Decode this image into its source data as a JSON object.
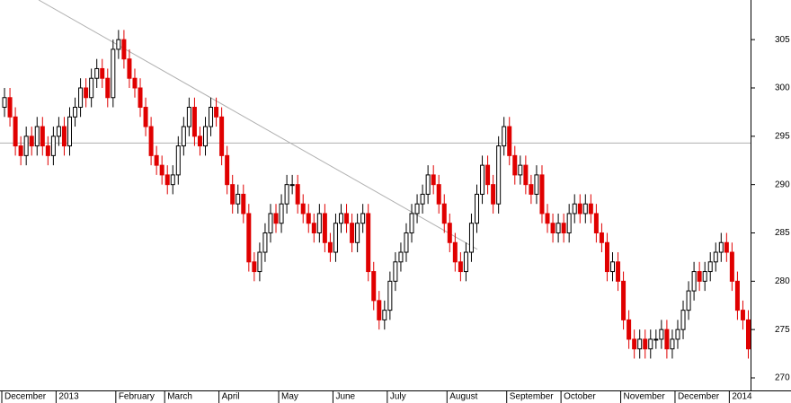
{
  "chart_data": {
    "type": "candlestick",
    "categories": [
      "December",
      null,
      null,
      null,
      null,
      null,
      null,
      null,
      null,
      null,
      "2013",
      null,
      null,
      null,
      null,
      null,
      null,
      null,
      null,
      null,
      null,
      "February",
      null,
      null,
      null,
      null,
      null,
      null,
      null,
      null,
      "March",
      null,
      null,
      null,
      null,
      null,
      null,
      null,
      null,
      null,
      "April",
      null,
      null,
      null,
      null,
      null,
      null,
      null,
      null,
      null,
      null,
      "May",
      null,
      null,
      null,
      null,
      null,
      null,
      null,
      null,
      null,
      "June",
      null,
      null,
      null,
      null,
      null,
      null,
      null,
      null,
      null,
      "July",
      null,
      null,
      null,
      null,
      null,
      null,
      null,
      null,
      null,
      null,
      "August",
      null,
      null,
      null,
      null,
      null,
      null,
      null,
      null,
      null,
      null,
      "September",
      null,
      null,
      null,
      null,
      null,
      null,
      null,
      null,
      null,
      "October",
      null,
      null,
      null,
      null,
      null,
      null,
      null,
      null,
      null,
      null,
      "November",
      null,
      null,
      null,
      null,
      null,
      null,
      null,
      null,
      null,
      "December",
      null,
      null,
      null,
      null,
      null,
      null,
      null,
      null,
      null,
      "2014",
      null,
      null,
      null
    ],
    "open": [
      298,
      299,
      297,
      294,
      293,
      295,
      294,
      296,
      294,
      293,
      295,
      296,
      294,
      297,
      298,
      300,
      299,
      301,
      302,
      301,
      299,
      304,
      305,
      303,
      301,
      300,
      298,
      296,
      293,
      292,
      291,
      290,
      291,
      294,
      296,
      298,
      295,
      294,
      296,
      298,
      297,
      293,
      290,
      288,
      289,
      287,
      282,
      281,
      283,
      285,
      287,
      286,
      288,
      290,
      290,
      288,
      287,
      286,
      285,
      287,
      284,
      283,
      286,
      287,
      286,
      284,
      286,
      287,
      281,
      278,
      276,
      277,
      280,
      282,
      283,
      285,
      287,
      288,
      289,
      291,
      290,
      288,
      286,
      284,
      282,
      281,
      283,
      286,
      289,
      292,
      290,
      288,
      294,
      296,
      293,
      291,
      292,
      290,
      289,
      291,
      287,
      286,
      285,
      286,
      285,
      287,
      288,
      287,
      288,
      287,
      285,
      284,
      281,
      282,
      280,
      276,
      274,
      273,
      274,
      273,
      274,
      274,
      275,
      273,
      274,
      275,
      277,
      279,
      281,
      280,
      281,
      282,
      283,
      284,
      283,
      280,
      277,
      276
    ],
    "high": [
      300,
      300,
      298,
      295,
      296,
      296,
      297,
      297,
      295,
      296,
      297,
      297,
      298,
      299,
      301,
      301,
      302,
      303,
      303,
      302,
      305,
      306,
      306,
      304,
      302,
      301,
      299,
      297,
      294,
      293,
      292,
      292,
      295,
      297,
      299,
      299,
      296,
      297,
      299,
      299,
      298,
      294,
      291,
      290,
      290,
      288,
      283,
      284,
      286,
      288,
      288,
      289,
      291,
      291,
      291,
      289,
      288,
      287,
      288,
      288,
      285,
      287,
      288,
      288,
      287,
      287,
      288,
      288,
      282,
      279,
      278,
      281,
      283,
      284,
      286,
      288,
      289,
      290,
      292,
      292,
      291,
      289,
      287,
      285,
      283,
      284,
      287,
      290,
      293,
      293,
      291,
      295,
      297,
      297,
      294,
      293,
      293,
      291,
      292,
      292,
      288,
      287,
      287,
      287,
      288,
      289,
      289,
      289,
      289,
      288,
      286,
      285,
      283,
      283,
      281,
      277,
      275,
      275,
      275,
      275,
      275,
      276,
      276,
      275,
      276,
      278,
      280,
      282,
      282,
      282,
      283,
      284,
      285,
      285,
      284,
      281,
      278,
      277
    ],
    "low": [
      297,
      296,
      293,
      292,
      292,
      293,
      293,
      293,
      292,
      292,
      294,
      293,
      293,
      296,
      297,
      298,
      298,
      300,
      300,
      298,
      298,
      303,
      302,
      300,
      299,
      297,
      295,
      292,
      291,
      290,
      289,
      289,
      290,
      293,
      295,
      294,
      293,
      293,
      295,
      296,
      292,
      289,
      287,
      287,
      286,
      281,
      280,
      280,
      282,
      284,
      285,
      285,
      287,
      289,
      287,
      286,
      285,
      284,
      284,
      283,
      282,
      282,
      285,
      285,
      283,
      283,
      285,
      280,
      277,
      275,
      275,
      276,
      279,
      281,
      282,
      284,
      286,
      287,
      288,
      289,
      287,
      285,
      283,
      281,
      280,
      280,
      282,
      285,
      288,
      289,
      287,
      287,
      293,
      292,
      290,
      290,
      289,
      288,
      288,
      286,
      285,
      284,
      284,
      284,
      284,
      286,
      286,
      286,
      286,
      284,
      283,
      280,
      280,
      279,
      275,
      273,
      272,
      272,
      272,
      272,
      273,
      273,
      272,
      272,
      273,
      274,
      276,
      278,
      279,
      279,
      280,
      281,
      282,
      282,
      279,
      276,
      275,
      272
    ],
    "close": [
      299,
      297,
      294,
      293,
      295,
      294,
      296,
      294,
      293,
      295,
      296,
      294,
      297,
      298,
      300,
      299,
      301,
      302,
      301,
      299,
      304,
      305,
      303,
      301,
      300,
      298,
      296,
      293,
      292,
      291,
      290,
      291,
      294,
      296,
      298,
      295,
      294,
      296,
      298,
      297,
      293,
      290,
      288,
      289,
      287,
      282,
      281,
      283,
      285,
      287,
      286,
      288,
      290,
      290,
      288,
      287,
      286,
      285,
      287,
      284,
      283,
      286,
      287,
      286,
      284,
      286,
      287,
      281,
      278,
      276,
      277,
      280,
      282,
      283,
      285,
      287,
      288,
      289,
      291,
      290,
      288,
      286,
      284,
      282,
      281,
      283,
      286,
      289,
      292,
      290,
      288,
      294,
      296,
      293,
      291,
      292,
      290,
      289,
      291,
      287,
      286,
      285,
      286,
      285,
      287,
      288,
      287,
      288,
      287,
      285,
      284,
      281,
      282,
      280,
      276,
      274,
      273,
      274,
      273,
      274,
      274,
      275,
      273,
      274,
      275,
      277,
      279,
      281,
      280,
      281,
      282,
      283,
      284,
      283,
      280,
      277,
      276,
      273
    ],
    "up_color": "#000000",
    "down_color": "#e00000",
    "ylim": [
      268.7,
      309.1
    ],
    "yticks": [
      270,
      275,
      280,
      285,
      290,
      295,
      300,
      305
    ],
    "reference_line": 294.3,
    "trendline": {
      "x": [
        6.3,
        87.1
      ],
      "y": [
        309.1,
        283.3
      ]
    }
  }
}
